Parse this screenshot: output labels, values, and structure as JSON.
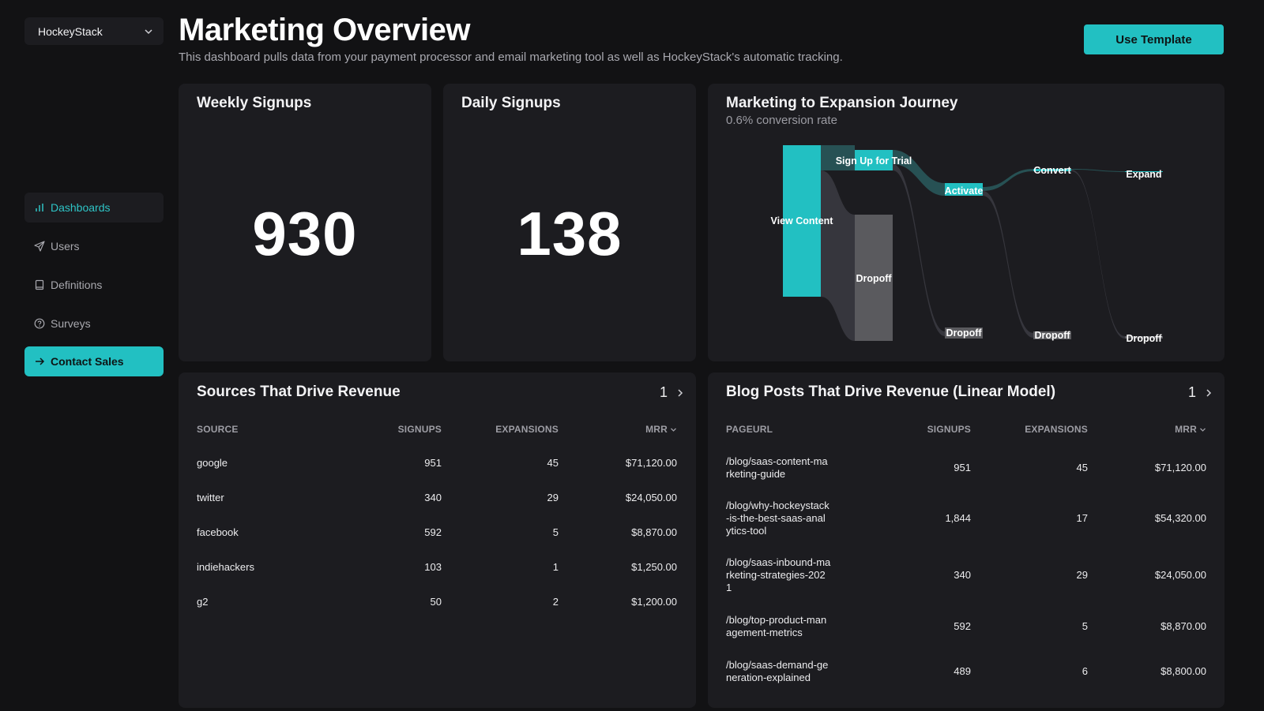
{
  "sidebar": {
    "workspace": "HockeyStack",
    "items": [
      {
        "label": "Dashboards"
      },
      {
        "label": "Users"
      },
      {
        "label": "Definitions"
      },
      {
        "label": "Surveys"
      },
      {
        "label": "Contact Sales"
      }
    ]
  },
  "header": {
    "title": "Marketing Overview",
    "subtitle": "This dashboard pulls data from your payment processor and email marketing tool as well as HockeyStack's automatic tracking.",
    "use_template_label": "Use Template"
  },
  "weekly": {
    "title": "Weekly Signups",
    "value": "930"
  },
  "daily": {
    "title": "Daily Signups",
    "value": "138"
  },
  "journey": {
    "title": "Marketing to Expansion Journey",
    "subtitle": "0.6% conversion rate",
    "nodes": {
      "view_content": "View Content",
      "sign_up": "Sign Up for Trial",
      "dropoff1": "Dropoff",
      "activate": "Activate",
      "dropoff2": "Dropoff",
      "convert": "Convert",
      "dropoff3": "Dropoff",
      "expand": "Expand",
      "dropoff4": "Dropoff"
    },
    "accent": "#22c0c2"
  },
  "sources": {
    "title": "Sources That Drive Revenue",
    "page": "1",
    "columns": [
      "SOURCE",
      "SIGNUPS",
      "EXPANSIONS",
      "MRR"
    ],
    "rows": [
      {
        "source": "google",
        "signups": "951",
        "expansions": "45",
        "mrr": "$71,120.00"
      },
      {
        "source": "twitter",
        "signups": "340",
        "expansions": "29",
        "mrr": "$24,050.00"
      },
      {
        "source": "facebook",
        "signups": "592",
        "expansions": "5",
        "mrr": "$8,870.00"
      },
      {
        "source": "indiehackers",
        "signups": "103",
        "expansions": "1",
        "mrr": "$1,250.00"
      },
      {
        "source": "g2",
        "signups": "50",
        "expansions": "2",
        "mrr": "$1,200.00"
      }
    ]
  },
  "blog": {
    "title": "Blog Posts That Drive Revenue (Linear Model)",
    "page": "1",
    "columns": [
      "PAGEURL",
      "SIGNUPS",
      "EXPANSIONS",
      "MRR"
    ],
    "rows": [
      {
        "url": "/blog/saas-content-ma\nrketing-guide",
        "signups": "951",
        "expansions": "45",
        "mrr": "$71,120.00"
      },
      {
        "url": "/blog/why-hockeystack\n-is-the-best-saas-anal\nytics-tool",
        "signups": "1,844",
        "expansions": "17",
        "mrr": "$54,320.00"
      },
      {
        "url": "/blog/saas-inbound-ma\nrketing-strategies-202\n1",
        "signups": "340",
        "expansions": "29",
        "mrr": "$24,050.00"
      },
      {
        "url": "/blog/top-product-man\nagement-metrics",
        "signups": "592",
        "expansions": "5",
        "mrr": "$8,870.00"
      },
      {
        "url": "/blog/saas-demand-ge\nneration-explained",
        "signups": "489",
        "expansions": "6",
        "mrr": "$8,800.00"
      }
    ]
  }
}
